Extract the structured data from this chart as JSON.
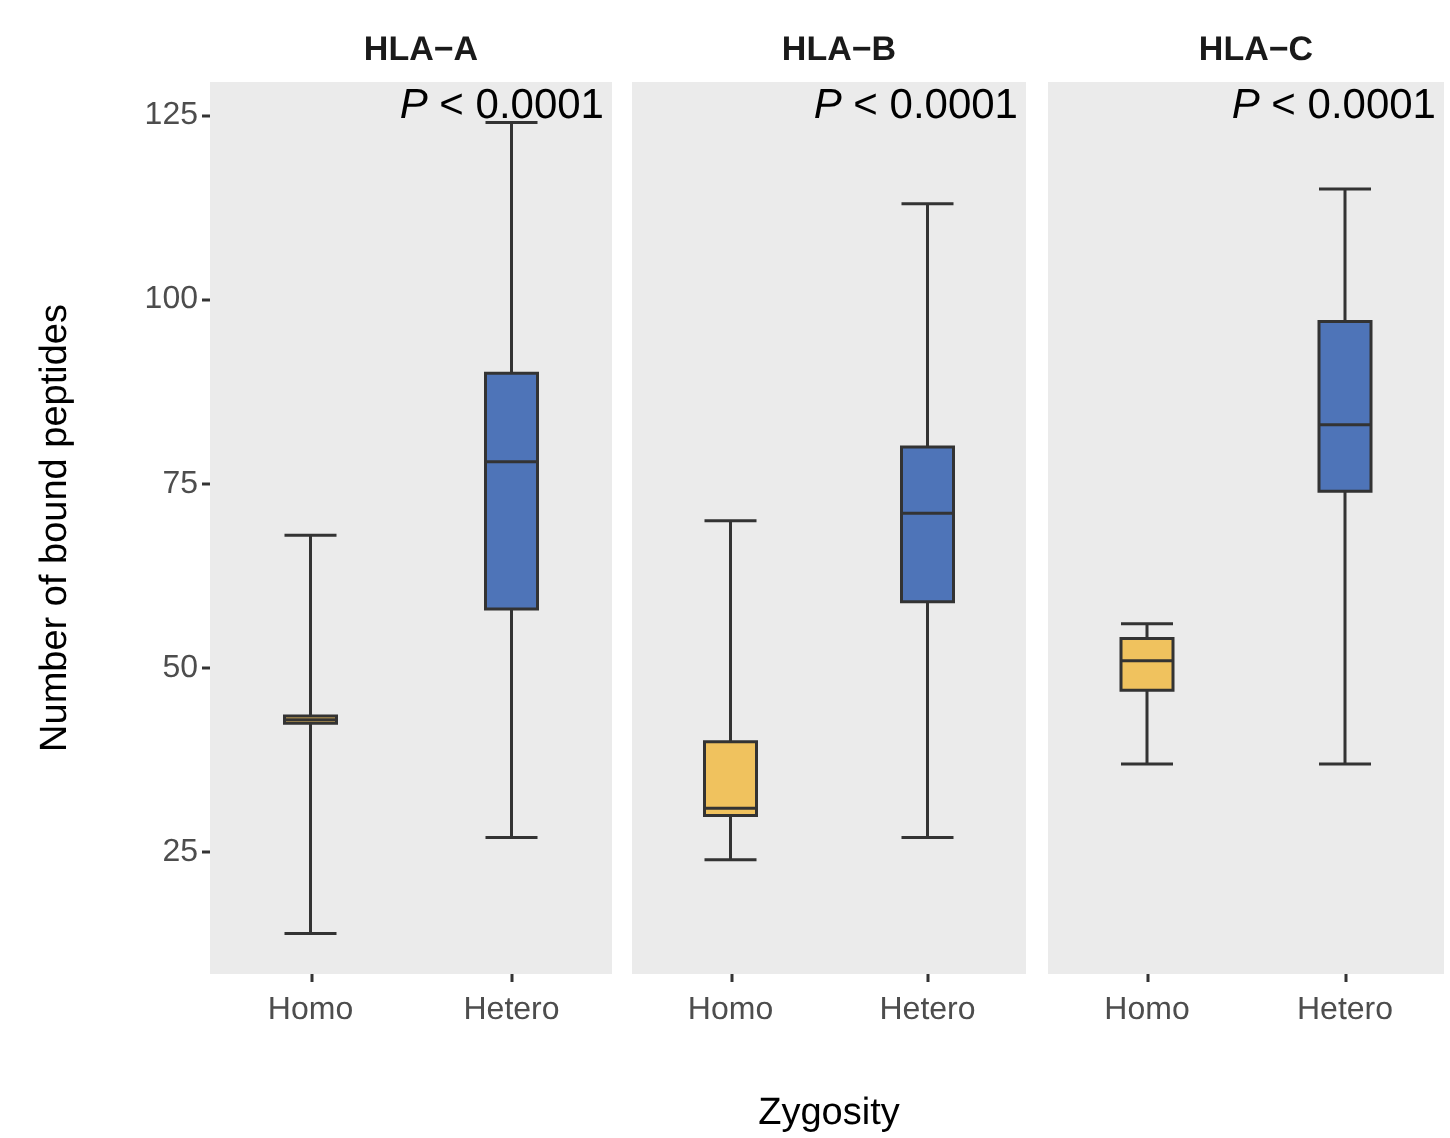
{
  "chart_data": [
    {
      "type": "box",
      "title": "HLA−A",
      "ylabel": "Number of bound peptides",
      "categories": [
        "Homo",
        "Hetero"
      ],
      "colors": [
        "#f0c25e",
        "#4e74b8"
      ],
      "boxes": [
        {
          "low": 14,
          "q1": 42.5,
          "median": 43,
          "q3": 43.5,
          "high": 68
        },
        {
          "low": 27,
          "q1": 58,
          "median": 78,
          "q3": 90,
          "high": 124
        }
      ],
      "ylim": [
        8.5,
        129.5
      ],
      "yticks": [
        25,
        50,
        75,
        100,
        125
      ],
      "annotations": [
        "P < 0.0001"
      ]
    },
    {
      "type": "box",
      "title": "HLA−B",
      "xlabel": "Zygosity",
      "categories": [
        "Homo",
        "Hetero"
      ],
      "colors": [
        "#f0c25e",
        "#4e74b8"
      ],
      "boxes": [
        {
          "low": 24,
          "q1": 30,
          "median": 31,
          "q3": 40,
          "high": 70
        },
        {
          "low": 27,
          "q1": 59,
          "median": 71,
          "q3": 80,
          "high": 113
        }
      ],
      "ylim": [
        8.5,
        129.5
      ],
      "yticks": [
        25,
        50,
        75,
        100,
        125
      ],
      "tick_labels": "x",
      "annotations": [
        "P < 0.0001"
      ]
    },
    {
      "type": "box",
      "title": "HLA−C",
      "categories": [
        "Homo",
        "Hetero"
      ],
      "colors": [
        "#f0c25e",
        "#4e74b8"
      ],
      "boxes": [
        {
          "low": 37,
          "q1": 47,
          "median": 51,
          "q3": 54,
          "high": 56
        },
        {
          "low": 37,
          "q1": 74,
          "median": 83,
          "q3": 97,
          "high": 115
        }
      ],
      "ylim": [
        8.5,
        129.5
      ],
      "yticks": [
        25,
        50,
        75,
        100,
        125
      ],
      "tick_labels": "x",
      "annotations": [
        "P < 0.0001"
      ]
    }
  ]
}
